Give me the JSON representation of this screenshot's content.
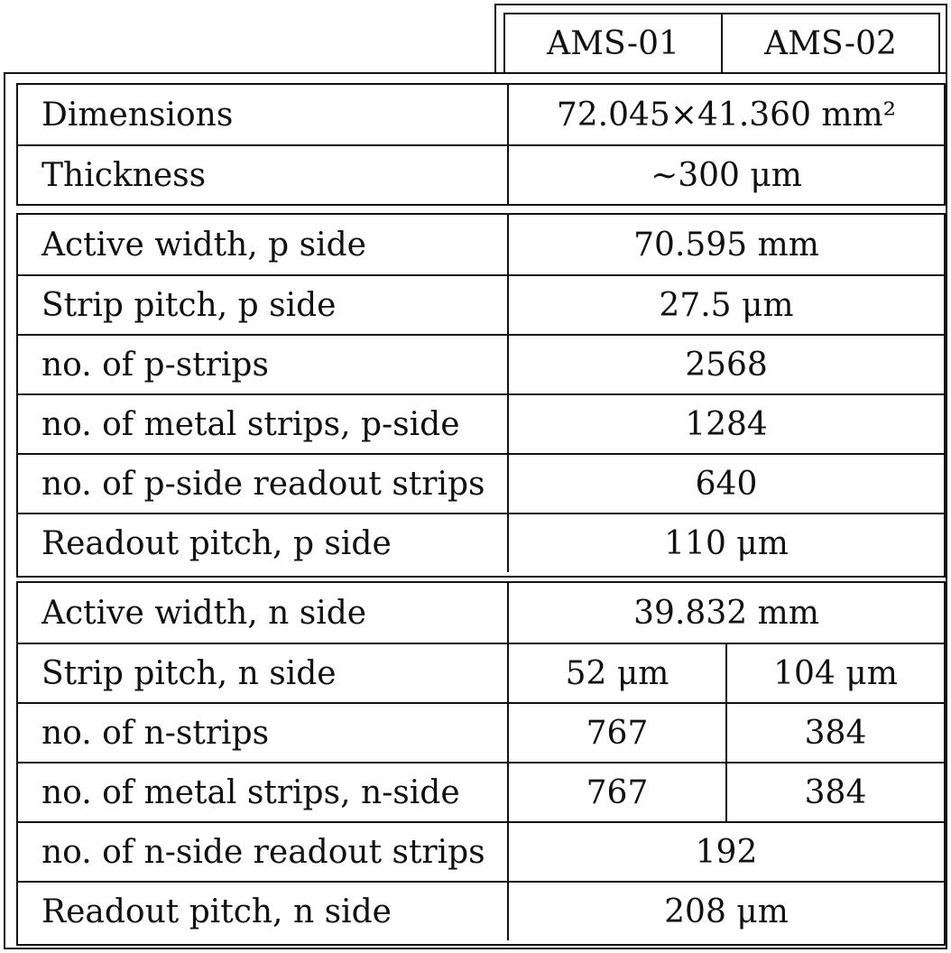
{
  "header": {
    "columns": [
      "AMS-01",
      "AMS-02"
    ]
  },
  "groups": [
    {
      "rows": [
        {
          "label": "Dimensions",
          "value": "72.045×41.360 mm²"
        },
        {
          "label": "Thickness",
          "value": "∼300 μm"
        }
      ]
    },
    {
      "rows": [
        {
          "label": "Active width, p side",
          "value": "70.595 mm"
        },
        {
          "label": "Strip pitch, p side",
          "value": "27.5 μm"
        },
        {
          "label": "no. of p-strips",
          "value": "2568"
        },
        {
          "label": "no. of metal strips, p-side",
          "value": "1284"
        },
        {
          "label": "no. of p-side readout strips",
          "value": "640"
        },
        {
          "label": "Readout pitch, p side",
          "value": "110 μm"
        }
      ]
    },
    {
      "rows": [
        {
          "label": "Active width, n side",
          "value": "39.832 mm"
        },
        {
          "label": "Strip pitch, n side",
          "ams01": "52 μm",
          "ams02": "104 μm"
        },
        {
          "label": "no. of n-strips",
          "ams01": "767",
          "ams02": "384"
        },
        {
          "label": "no. of metal strips, n-side",
          "ams01": "767",
          "ams02": "384"
        },
        {
          "label": "no. of n-side readout strips",
          "value": "192"
        },
        {
          "label": "Readout pitch, n side",
          "value": "208 μm"
        }
      ]
    }
  ]
}
